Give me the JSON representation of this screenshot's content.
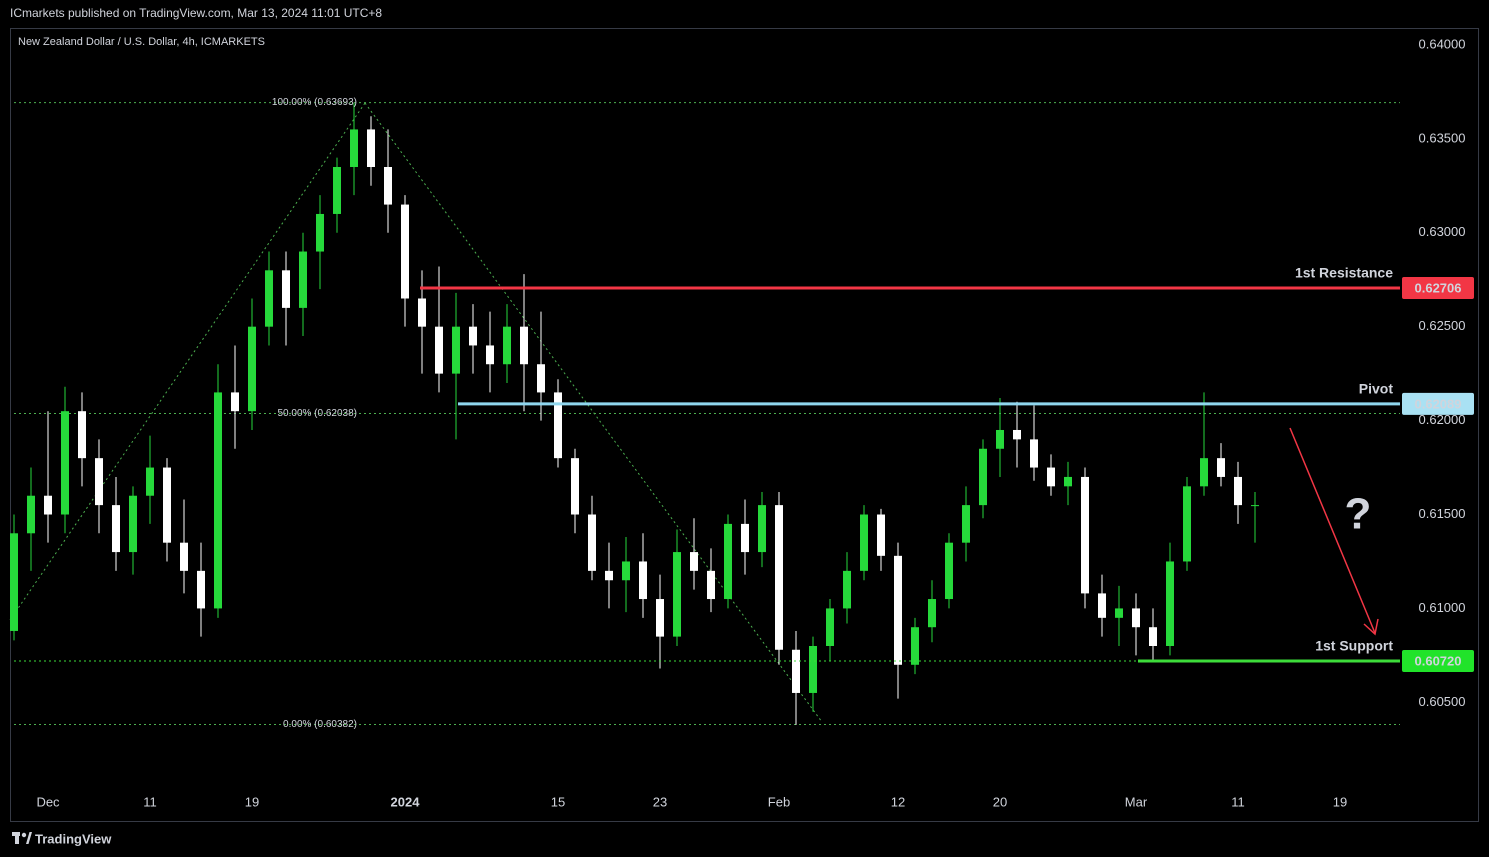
{
  "chart_data": {
    "type": "candlestick",
    "caption": "ICmarkets published on TradingView.com, Mar 13, 2024 11:01 UTC+8",
    "title": "New Zealand Dollar / U.S. Dollar, 4h, ICMARKETS",
    "brand": "TradingView",
    "annotation": "?",
    "up_color": "#26d93b",
    "down_color": "#ffffff",
    "grid": false,
    "categories": [
      null,
      null,
      "Dec",
      null,
      null,
      null,
      null,
      null,
      "11",
      null,
      null,
      null,
      null,
      null,
      "19",
      null,
      null,
      null,
      null,
      null,
      null,
      null,
      null,
      "2024",
      null,
      null,
      null,
      null,
      null,
      null,
      null,
      null,
      "15",
      null,
      null,
      null,
      null,
      null,
      "23",
      null,
      null,
      null,
      null,
      null,
      null,
      "Feb",
      null,
      null,
      null,
      null,
      null,
      null,
      "12",
      null,
      null,
      null,
      null,
      null,
      "20",
      null,
      null,
      null,
      null,
      null,
      null,
      null,
      "Mar",
      null,
      null,
      null,
      null,
      null,
      "11",
      null,
      null,
      null,
      null,
      null,
      "19",
      null,
      null,
      null
    ],
    "open": [
      0.6088,
      0.614,
      0.616,
      0.615,
      0.6205,
      0.618,
      0.6155,
      0.613,
      0.616,
      0.6175,
      0.6135,
      0.612,
      0.61,
      0.6215,
      0.6205,
      0.625,
      0.628,
      0.626,
      0.629,
      0.631,
      0.6335,
      0.6355,
      0.6335,
      0.6315,
      0.6265,
      0.625,
      0.6225,
      0.625,
      0.624,
      0.623,
      0.625,
      0.623,
      0.6215,
      0.618,
      0.615,
      0.612,
      0.6115,
      0.6125,
      0.6105,
      0.6085,
      0.613,
      0.612,
      0.6105,
      0.6145,
      0.613,
      0.6155,
      0.6078,
      0.6055,
      0.608,
      0.61,
      0.612,
      0.615,
      0.6128,
      0.607,
      0.609,
      0.6105,
      0.6135,
      0.6155,
      0.6185,
      0.6195,
      0.619,
      0.6175,
      0.6165,
      0.617,
      0.6108,
      0.6095,
      0.61,
      0.609,
      0.608,
      0.6125,
      0.6165,
      0.618,
      0.617,
      0.6155,
      null,
      null,
      null,
      null,
      null,
      null,
      null,
      null
    ],
    "high": [
      0.615,
      0.6175,
      0.6205,
      0.6218,
      0.6215,
      0.619,
      0.617,
      0.6165,
      0.6192,
      0.618,
      0.6158,
      0.6135,
      0.623,
      0.624,
      0.6265,
      0.629,
      0.629,
      0.63,
      0.632,
      0.634,
      0.6369,
      0.6362,
      0.6355,
      0.632,
      0.628,
      0.6282,
      0.6268,
      0.6262,
      0.6258,
      0.6262,
      0.6278,
      0.6258,
      0.6222,
      0.6185,
      0.616,
      0.6135,
      0.6138,
      0.614,
      0.6118,
      0.6142,
      0.6148,
      0.6132,
      0.615,
      0.6158,
      0.6162,
      0.6162,
      0.6088,
      0.6085,
      0.6105,
      0.613,
      0.6155,
      0.6153,
      0.6135,
      0.6095,
      0.6115,
      0.614,
      0.6165,
      0.619,
      0.6212,
      0.621,
      0.6208,
      0.6182,
      0.6178,
      0.6175,
      0.6118,
      0.6112,
      0.6108,
      0.61,
      0.6135,
      0.617,
      0.6215,
      0.6188,
      0.6178,
      0.6162,
      null,
      null,
      null,
      null,
      null,
      null,
      null,
      null
    ],
    "low": [
      0.6083,
      0.612,
      0.6135,
      0.614,
      0.6165,
      0.614,
      0.612,
      0.6118,
      0.6145,
      0.6125,
      0.6108,
      0.6085,
      0.6095,
      0.6185,
      0.6195,
      0.624,
      0.624,
      0.6245,
      0.627,
      0.63,
      0.632,
      0.6325,
      0.63,
      0.625,
      0.6225,
      0.6215,
      0.619,
      0.6225,
      0.6215,
      0.622,
      0.6205,
      0.62,
      0.6175,
      0.614,
      0.6115,
      0.61,
      0.6098,
      0.6095,
      0.6068,
      0.608,
      0.611,
      0.6098,
      0.61,
      0.6118,
      0.6122,
      0.607,
      0.6038,
      0.6045,
      0.6072,
      0.6092,
      0.6115,
      0.612,
      0.6052,
      0.6065,
      0.6082,
      0.61,
      0.6125,
      0.6148,
      0.617,
      0.6175,
      0.6168,
      0.616,
      0.6155,
      0.61,
      0.6085,
      0.608,
      0.6075,
      0.6072,
      0.6075,
      0.612,
      0.616,
      0.6165,
      0.6145,
      0.6135,
      null,
      null,
      null,
      null,
      null,
      null,
      null,
      null
    ],
    "close": [
      0.614,
      0.616,
      0.615,
      0.6205,
      0.618,
      0.6155,
      0.613,
      0.616,
      0.6175,
      0.6135,
      0.612,
      0.61,
      0.6215,
      0.6205,
      0.625,
      0.628,
      0.626,
      0.629,
      0.631,
      0.6335,
      0.6355,
      0.6335,
      0.6315,
      0.6265,
      0.625,
      0.6225,
      0.625,
      0.624,
      0.623,
      0.625,
      0.623,
      0.6215,
      0.618,
      0.615,
      0.612,
      0.6115,
      0.6125,
      0.6105,
      0.6085,
      0.613,
      0.612,
      0.6105,
      0.6145,
      0.613,
      0.6155,
      0.6078,
      0.6055,
      0.608,
      0.61,
      0.612,
      0.615,
      0.6128,
      0.607,
      0.609,
      0.6105,
      0.6135,
      0.6155,
      0.6185,
      0.6195,
      0.619,
      0.6175,
      0.6165,
      0.617,
      0.6108,
      0.6095,
      0.61,
      0.609,
      0.608,
      0.6125,
      0.6165,
      0.618,
      0.617,
      0.6155,
      0.6155,
      null,
      null,
      null,
      null,
      null,
      null,
      null,
      null
    ],
    "ylim": [
      0.6006,
      0.6409
    ],
    "yticks": [
      {
        "value": 0.605,
        "label": "0.60500"
      },
      {
        "value": 0.61,
        "label": "0.61000"
      },
      {
        "value": 0.615,
        "label": "0.61500"
      },
      {
        "value": 0.62,
        "label": "0.62000"
      },
      {
        "value": 0.625,
        "label": "0.62500"
      },
      {
        "value": 0.63,
        "label": "0.63000"
      },
      {
        "value": 0.635,
        "label": "0.63500"
      },
      {
        "value": 0.64,
        "label": "0.64000"
      }
    ],
    "fib_levels": [
      {
        "label": "100.00% (0.63693)",
        "value": 0.63693
      },
      {
        "label": "50.00% (0.62038)",
        "value": 0.62038
      },
      {
        "label": "0.00% (0.60382)",
        "value": 0.60382
      }
    ],
    "fib_color": "#4caf50",
    "levels": [
      {
        "name": "1st Resistance",
        "value": 0.62706,
        "color": "#f23645",
        "tag_color": "#f23645",
        "tag_text_color": "#ffffff"
      },
      {
        "name": "Pivot",
        "value": 0.62089,
        "color": "#8fd6ee",
        "tag_color": "#a9e1f3",
        "tag_text_color": "#131722"
      },
      {
        "name": "1st Support",
        "value": 0.6072,
        "value_label": "0.60720",
        "color": "#3ddc3a",
        "tag_color": "#21e32a",
        "tag_text_color": "#131722"
      }
    ]
  }
}
